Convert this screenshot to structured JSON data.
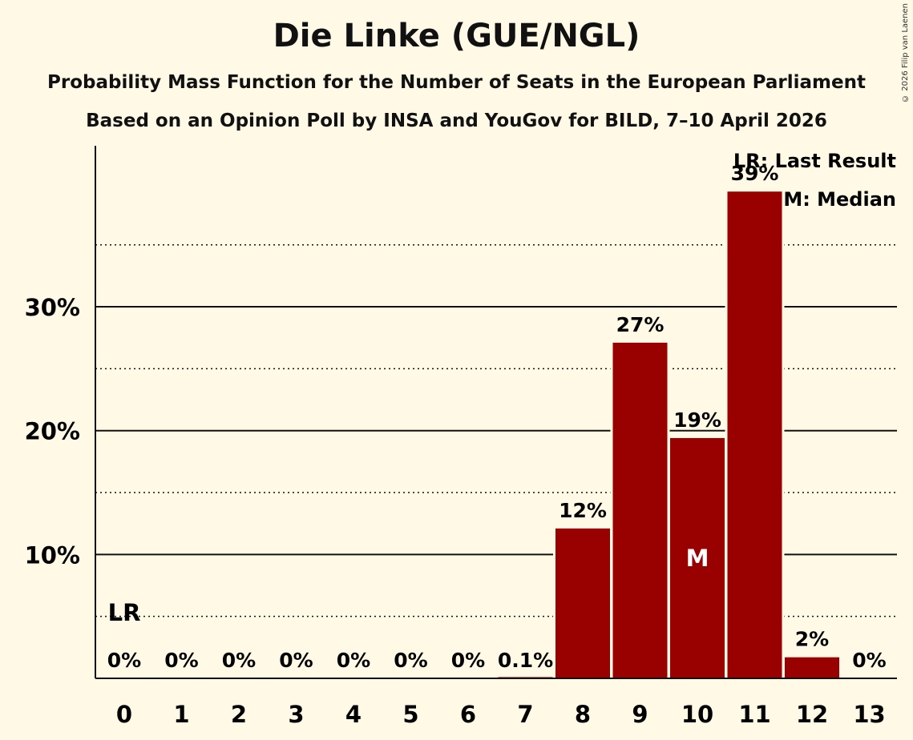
{
  "header": {
    "title": "Die Linke (GUE/NGL)",
    "subtitle1": "Probability Mass Function for the Number of Seats in the European Parliament",
    "subtitle2": "Based on an Opinion Poll by INSA and YouGov for BILD, 7–10 April 2026",
    "copyright": "© 2026 Filip van Laenen"
  },
  "legend": {
    "last_result": "LR: Last Result",
    "median": "M: Median"
  },
  "colors": {
    "bar": "#990000",
    "background": "#fff9e6"
  },
  "chart_data": {
    "type": "bar",
    "title": "Die Linke (GUE/NGL)",
    "xlabel": "",
    "ylabel": "",
    "categories": [
      "0",
      "1",
      "2",
      "3",
      "4",
      "5",
      "6",
      "7",
      "8",
      "9",
      "10",
      "11",
      "12",
      "13"
    ],
    "values": [
      0,
      0,
      0,
      0,
      0,
      0,
      0,
      0.1,
      12.1,
      27.1,
      19.4,
      39.3,
      1.7,
      0
    ],
    "value_labels": [
      "0%",
      "0%",
      "0%",
      "0%",
      "0%",
      "0%",
      "0%",
      "0.1%",
      "12%",
      "27%",
      "19%",
      "39%",
      "2%",
      "0%"
    ],
    "ylim": [
      0,
      43
    ],
    "yticks": [
      10,
      20,
      30
    ],
    "ytick_labels": [
      "10%",
      "20%",
      "30%"
    ],
    "minor_gridlines": [
      5,
      15,
      25,
      35
    ],
    "last_result_seat": 0,
    "last_result_marker": "LR",
    "median_seat": 10,
    "median_marker": "M"
  }
}
